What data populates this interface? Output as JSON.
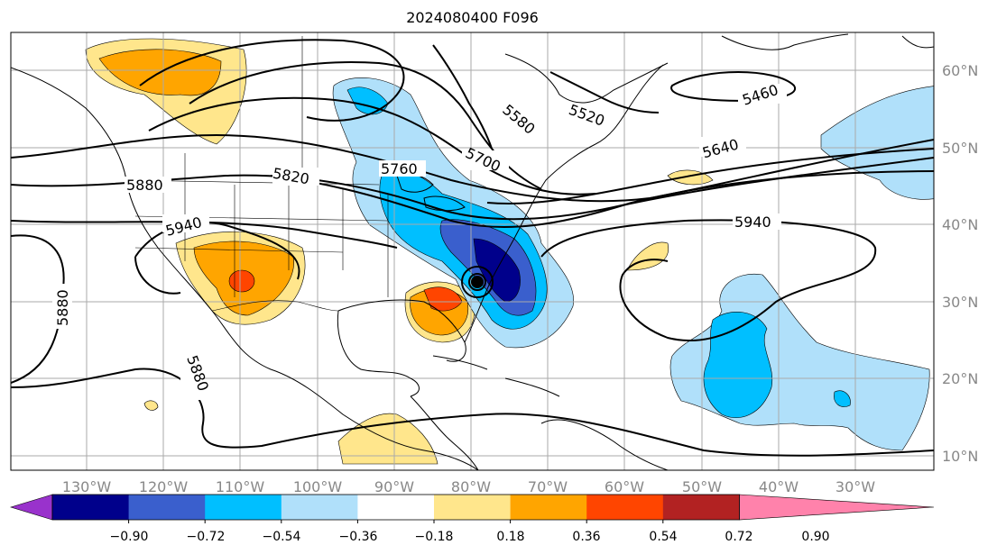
{
  "title": "2024080400 F096",
  "lon_labels": [
    "130°W",
    "120°W",
    "110°W",
    "100°W",
    "90°W",
    "80°W",
    "70°W",
    "60°W",
    "50°W",
    "40°W",
    "30°W"
  ],
  "lat_labels": [
    "60°N",
    "50°N",
    "40°N",
    "30°N",
    "20°N",
    "10°N"
  ],
  "contour_labels": [
    "5460",
    "5520",
    "5580",
    "5640",
    "5700",
    "5760",
    "5820",
    "5880",
    "5940",
    "5940",
    "5880",
    "5880"
  ],
  "colorbar": {
    "tick_labels": [
      "−0.90",
      "−0.72",
      "−0.54",
      "−0.36",
      "−0.18",
      "0.18",
      "0.36",
      "0.54",
      "0.72",
      "0.90"
    ],
    "colors": [
      "#9932cc",
      "#00008b",
      "#3a5fcd",
      "#00bfff",
      "#b0e0fa",
      "#ffffff",
      "#ffe68c",
      "#ffa500",
      "#ff4500",
      "#b22222",
      "#ff82ab"
    ]
  },
  "storm_marker": "tropical-storm-marker"
}
